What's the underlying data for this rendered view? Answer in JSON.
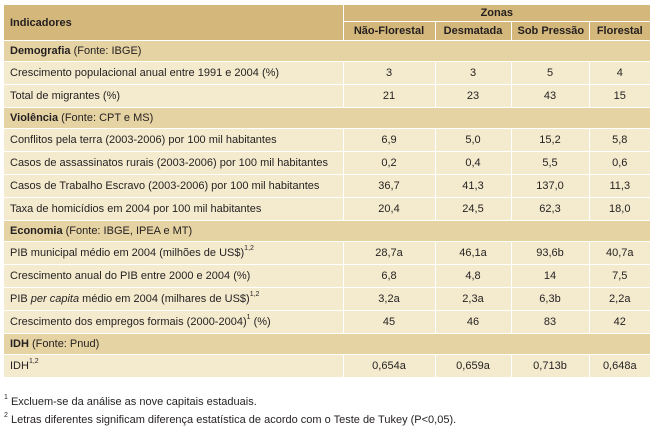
{
  "header": {
    "indicators": "Indicadores",
    "zones": "Zonas",
    "columns": [
      "Não-Florestal",
      "Desmatada",
      "Sob Pressão",
      "Florestal"
    ]
  },
  "sections": [
    {
      "title": "Demografia",
      "source": "(Fonte: IBGE)",
      "rows": [
        {
          "pre": "Crescimento populacional anual entre 1991 e 2004 (%)",
          "values": [
            "3",
            "3",
            "5",
            "4"
          ]
        },
        {
          "pre": "Total de migrantes (%)",
          "values": [
            "21",
            "23",
            "43",
            "15"
          ]
        }
      ]
    },
    {
      "title": "Violência",
      "source": "(Fonte: CPT e MS)",
      "rows": [
        {
          "pre": "Conflitos pela terra (2003-2006) por 100 mil habitantes",
          "values": [
            "6,9",
            "5,0",
            "15,2",
            "5,8"
          ]
        },
        {
          "pre": "Casos de assassinatos rurais (2003-2006) por 100 mil habitantes",
          "values": [
            "0,2",
            "0,4",
            "5,5",
            "0,6"
          ]
        },
        {
          "pre": "Casos de Trabalho Escravo (2003-2006) por 100 mil habitantes",
          "values": [
            "36,7",
            "41,3",
            "137,0",
            "11,3"
          ]
        },
        {
          "pre": "Taxa de homicídios em 2004 por 100 mil habitantes",
          "values": [
            "20,4",
            "24,5",
            "62,3",
            "18,0"
          ]
        }
      ]
    },
    {
      "title": "Economia",
      "source": "(Fonte: IBGE, IPEA e MT)",
      "rows": [
        {
          "pre": "PIB municipal médio em 2004 (milhões de US$)",
          "sup": "1,2",
          "values": [
            "28,7a",
            "46,1a",
            "93,6b",
            "40,7a"
          ]
        },
        {
          "pre": "Crescimento anual do PIB entre 2000 e 2004 (%)",
          "values": [
            "6,8",
            "4,8",
            "14",
            "7,5"
          ]
        },
        {
          "pre": "PIB ",
          "italic": "per capita",
          "post": " médio em 2004 (milhares de US$)",
          "sup": "1,2",
          "values": [
            "3,2a",
            "2,3a",
            "6,3b",
            "2,2a"
          ]
        },
        {
          "pre": "Crescimento dos empregos formais (2000-2004)",
          "sup": "1",
          "post2": "  (%)",
          "values": [
            "45",
            "46",
            "83",
            "42"
          ]
        }
      ]
    },
    {
      "title": "IDH",
      "source": "(Fonte: Pnud)",
      "rows": [
        {
          "pre": "IDH",
          "sup": "1,2",
          "values": [
            "0,654a",
            "0,659a",
            "0,713b",
            "0,648a"
          ]
        }
      ]
    }
  ],
  "footnotes": [
    {
      "mark": "1",
      "text": " Excluem-se da análise as nove capitais estaduais."
    },
    {
      "mark": "2",
      "text": " Letras diferentes significam diferença estatística de acordo com o Teste de Tukey (P<0,05)."
    }
  ],
  "colors": {
    "header": "#d4b77a",
    "section": "#e6d3a4",
    "row": "#f4ebce"
  }
}
